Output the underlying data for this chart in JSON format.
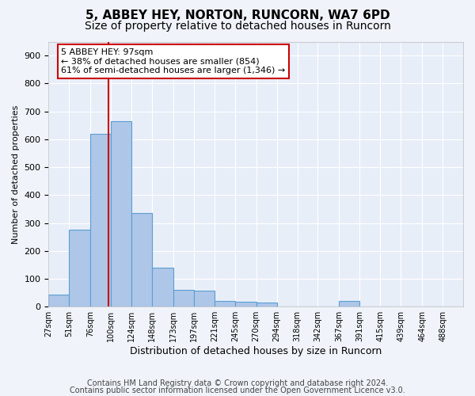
{
  "title": "5, ABBEY HEY, NORTON, RUNCORN, WA7 6PD",
  "subtitle": "Size of property relative to detached houses in Runcorn",
  "xlabel": "Distribution of detached houses by size in Runcorn",
  "ylabel": "Number of detached properties",
  "footnote1": "Contains HM Land Registry data © Crown copyright and database right 2024.",
  "footnote2": "Contains public sector information licensed under the Open Government Licence v3.0.",
  "bar_edges": [
    27,
    51,
    76,
    100,
    124,
    148,
    173,
    197,
    221,
    245,
    270,
    294,
    318,
    342,
    367,
    391,
    415,
    439,
    464,
    488,
    512
  ],
  "bar_heights": [
    42,
    275,
    620,
    665,
    335,
    140,
    60,
    57,
    20,
    18,
    15,
    0,
    0,
    0,
    20,
    0,
    0,
    0,
    0,
    0
  ],
  "bar_color": "#aec6e8",
  "bar_edgecolor": "#5a9fd4",
  "vline_x": 97,
  "vline_color": "#cc0000",
  "annot_line1": "5 ABBEY HEY: 97sqm",
  "annot_line2": "← 38% of detached houses are smaller (854)",
  "annot_line3": "61% of semi-detached houses are larger (1,346) →",
  "annotation_box_color": "#ffffff",
  "annotation_border_color": "#cc0000",
  "ylim": [
    0,
    950
  ],
  "yticks": [
    0,
    100,
    200,
    300,
    400,
    500,
    600,
    700,
    800,
    900
  ],
  "background_color": "#f0f4fa",
  "plot_bg_color": "#e8eef8",
  "grid_color": "#ffffff",
  "title_fontsize": 11,
  "subtitle_fontsize": 10,
  "tick_label_fontsize": 7,
  "xlabel_fontsize": 9,
  "ylabel_fontsize": 8,
  "annotation_fontsize": 8,
  "footnote_fontsize": 7
}
